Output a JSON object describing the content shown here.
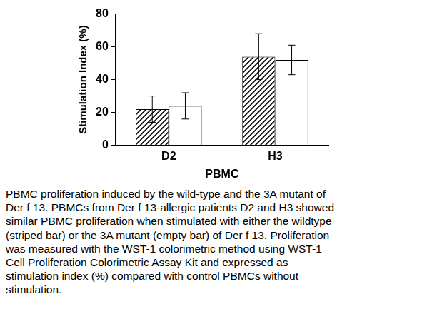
{
  "chart_data": {
    "type": "bar",
    "categories": [
      "D2",
      "H3"
    ],
    "x_label": "PBMC",
    "y_label": "Stimulation Index (%)",
    "series": [
      {
        "color": "#000000",
        "values": [
          22,
          54
        ],
        "errors": [
          8,
          14
        ]
      },
      {
        "color": "#ffffff",
        "values": [
          24,
          52
        ],
        "errors": [
          8,
          9
        ]
      }
    ],
    "ylim": [
      0,
      80
    ],
    "yticks": [
      0,
      20,
      40,
      60,
      80
    ],
    "grid": false
  },
  "caption_lines": [
    "PBMC proliferation induced by the wild-type and the 3A mutant of",
    "Der f 13. PBMCs from Der f 13-allergic patients D2 and H3 showed",
    "similar PBMC proliferation when stimulated with either the wildtype",
    "(striped bar) or the 3A mutant (empty bar) of Der f 13. Proliferation",
    "was measured with the WST-1 colorimetric method using WST-1",
    "Cell Proliferation Colorimetric Assay Kit and expressed as",
    "stimulation index (%) compared with control PBMCs without",
    "stimulation."
  ]
}
